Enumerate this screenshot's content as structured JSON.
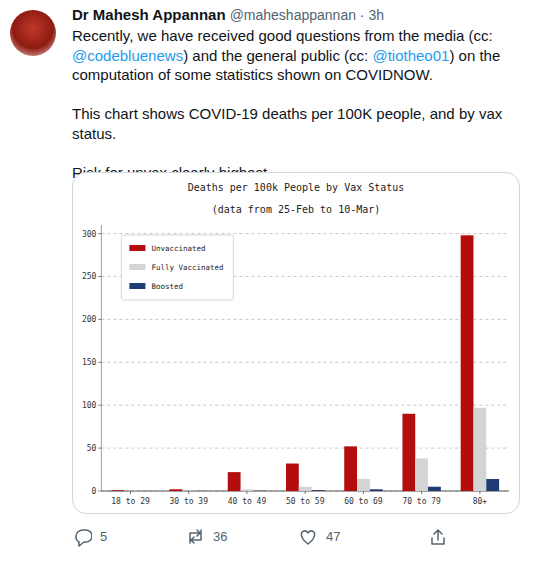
{
  "tweet": {
    "author": "Dr Mahesh Appannan",
    "handle_time": "@maheshappannan · 3h",
    "paragraphs": [
      "Recently, we have received good questions from the media (cc: @codebluenews) and the general public (cc: @tiotheo01) on the computation of some statistics shown on COVIDNOW.",
      "This chart shows COVID-19 deaths per 100K people, and by vax status.",
      "Risk for unvax clearly highest."
    ],
    "replies": 5,
    "retweets": 36,
    "likes": 47
  },
  "chart_data": {
    "type": "bar",
    "title": "Deaths per 100k People by Vax Status",
    "subtitle": "(data from 25-Feb to 10-Mar)",
    "categories": [
      "18 to 29",
      "30 to 39",
      "40 to 49",
      "50 to 59",
      "60 to 69",
      "70 to 79",
      "80+"
    ],
    "series": [
      {
        "name": "Unvaccinated",
        "color": "#b30d0d",
        "values": [
          1,
          2,
          22,
          32,
          52,
          90,
          298
        ]
      },
      {
        "name": "Fully Vaccinated",
        "color": "#d4d4d4",
        "values": [
          0.2,
          0.4,
          2,
          5,
          14,
          38,
          97
        ]
      },
      {
        "name": "Boosted",
        "color": "#1f3b73",
        "values": [
          0,
          0.1,
          0.3,
          1,
          2,
          5,
          14
        ]
      }
    ],
    "ylim": [
      0,
      310
    ],
    "yticks": [
      0,
      50,
      100,
      150,
      200,
      250,
      300
    ],
    "grid": true,
    "legend": "upper left"
  }
}
